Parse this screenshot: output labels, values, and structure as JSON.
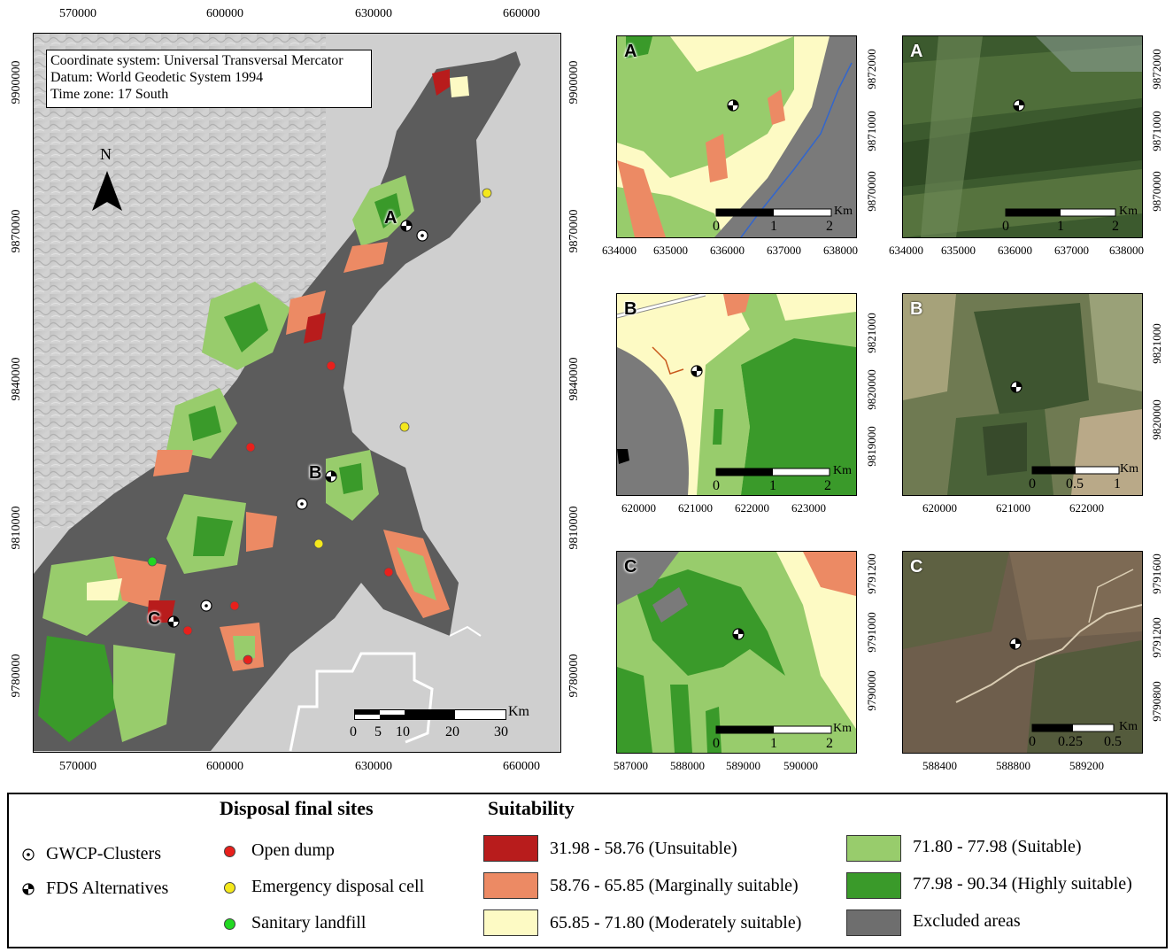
{
  "main_map": {
    "info_lines": [
      "Coordinate system: Universal Transversal Mercator",
      "Datum: World Geodetic System 1994",
      "Time zone: 17 South"
    ],
    "x_ticks": [
      "570000",
      "600000",
      "630000",
      "660000"
    ],
    "y_ticks": [
      "9900000",
      "9870000",
      "9840000",
      "9810000",
      "9780000"
    ],
    "north_label": "N",
    "scalebar": {
      "labels": [
        "0",
        "5",
        "10",
        "20",
        "30"
      ],
      "unit": "Km"
    },
    "site_labels": [
      "A",
      "B",
      "C"
    ]
  },
  "panels": [
    {
      "letter": "A",
      "kind": "suitability",
      "x_ticks": [
        "634000",
        "635000",
        "636000",
        "637000",
        "638000"
      ],
      "y_ticks": [
        "9872000",
        "9871000",
        "9870000"
      ],
      "scale_labels": [
        "0",
        "1",
        "2"
      ],
      "unit": "Km"
    },
    {
      "letter": "A",
      "kind": "satellite",
      "x_ticks": [
        "634000",
        "635000",
        "636000",
        "637000",
        "638000"
      ],
      "y_ticks": [
        "9872000",
        "9871000",
        "9870000"
      ],
      "scale_labels": [
        "0",
        "1",
        "2"
      ],
      "unit": "Km"
    },
    {
      "letter": "B",
      "kind": "suitability",
      "x_ticks": [
        "620000",
        "621000",
        "622000",
        "623000"
      ],
      "y_ticks": [
        "9821000",
        "9820000",
        "9819000"
      ],
      "scale_labels": [
        "0",
        "1",
        "2"
      ],
      "unit": "Km"
    },
    {
      "letter": "B",
      "kind": "satellite",
      "x_ticks": [
        "620000",
        "621000",
        "622000"
      ],
      "y_ticks": [
        "9821000",
        "9820000"
      ],
      "scale_labels": [
        "0",
        "0.5",
        "1"
      ],
      "unit": "Km"
    },
    {
      "letter": "C",
      "kind": "suitability",
      "x_ticks": [
        "587000",
        "588000",
        "589000",
        "590000"
      ],
      "y_ticks": [
        "9791200",
        "9791000",
        "9790000"
      ],
      "scale_labels": [
        "0",
        "1",
        "2"
      ],
      "unit": "Km"
    },
    {
      "letter": "C",
      "kind": "satellite",
      "x_ticks": [
        "588400",
        "588800",
        "589200"
      ],
      "y_ticks": [
        "9791600",
        "9791200",
        "9790800"
      ],
      "scale_labels": [
        "0",
        "0.25",
        "0.5"
      ],
      "unit": "Km"
    }
  ],
  "legend": {
    "symbols": [
      {
        "label": "GWCP-Clusters",
        "icon": "circle-dot-icon"
      },
      {
        "label": "FDS Alternatives",
        "icon": "quartered-circle-icon"
      }
    ],
    "sites_title": "Disposal final sites",
    "sites": [
      {
        "label": "Open dump",
        "color": "#e8201c"
      },
      {
        "label": "Emergency disposal cell",
        "color": "#f4e81c"
      },
      {
        "label": "Sanitary landfill",
        "color": "#22d822"
      }
    ],
    "suitability_title": "Suitability",
    "classes": [
      {
        "label": "31.98 - 58.76 (Unsuitable)",
        "color": "#b81c1c"
      },
      {
        "label": "58.76 - 65.85 (Marginally suitable)",
        "color": "#ec8a64"
      },
      {
        "label": "65.85 - 71.80 (Moderately suitable)",
        "color": "#fdfac4"
      },
      {
        "label": "71.80 - 77.98 (Suitable)",
        "color": "#98cc6c"
      },
      {
        "label": "77.98 - 90.34 (Highly suitable)",
        "color": "#3a9a2a"
      },
      {
        "label": "Excluded areas",
        "color": "#6e6e6e"
      }
    ]
  }
}
